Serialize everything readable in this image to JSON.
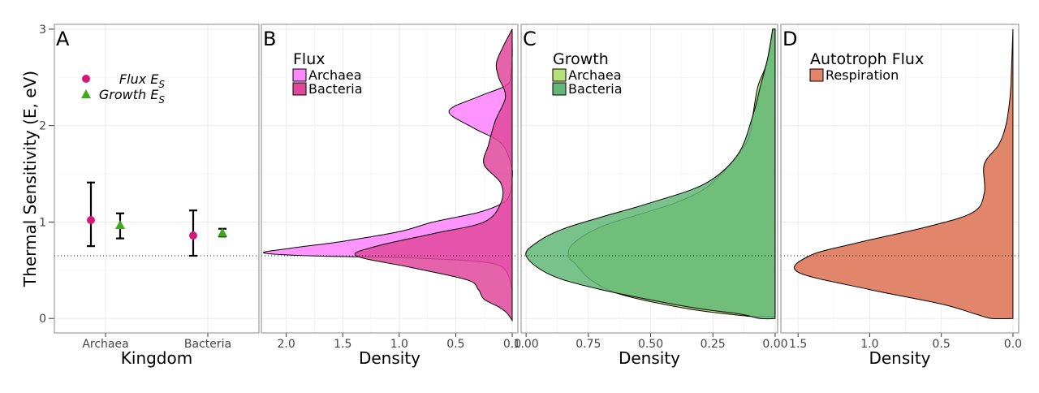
{
  "y_axis": {
    "title": "Thermal Sensitivity (E, eV)",
    "range": [
      -0.15,
      3.05
    ],
    "ticks": [
      0,
      1,
      2,
      3
    ],
    "tick_labels": [
      "0",
      "1",
      "2",
      "3"
    ]
  },
  "reference_line_y": 0.65,
  "colors": {
    "flux_point": "#d6167a",
    "growth_point": "#3fa91c",
    "flux_archaea": "#ff88ff",
    "flux_bacteria": "#e0489c",
    "growth_archaea": "#b7e078",
    "growth_bacteria": "#63b777",
    "growth_overlap": "#4db944",
    "flux_overlap": "#e040ae",
    "respiration": "#e2866b"
  },
  "chart_data": [
    {
      "panel": "A",
      "type": "scatter",
      "title": "",
      "xlabel": "Kingdom",
      "ylabel": "Thermal Sensitivity (E, eV)",
      "categories": [
        "Archaea",
        "Bacteria"
      ],
      "legend_placement": "top-left",
      "grid": true,
      "series": [
        {
          "name": "Flux E_S",
          "legend_main": "Flux E",
          "legend_sub": "S",
          "marker": "circle",
          "values": [
            1.02,
            0.86
          ],
          "error_low": [
            0.75,
            0.65
          ],
          "error_high": [
            1.41,
            1.12
          ]
        },
        {
          "name": "Growth E_S",
          "legend_main": "Growth E",
          "legend_sub": "S",
          "marker": "triangle",
          "values": [
            0.97,
            0.89
          ],
          "error_low": [
            0.83,
            0.85
          ],
          "error_high": [
            1.09,
            0.93
          ]
        }
      ]
    },
    {
      "panel": "B",
      "type": "area",
      "legend_title": "Flux",
      "xlabel": "Density",
      "xlim": [
        2.22,
        -0.05
      ],
      "x_ticks": [
        2.0,
        1.5,
        1.0,
        0.5,
        0.0
      ],
      "x_tick_labels": [
        "2.0",
        "1.5",
        "1.0",
        "0.5",
        "0.0"
      ],
      "legend_placement": "top-left",
      "grid": true,
      "series": [
        {
          "name": "Archaea",
          "points": [
            [
              0,
              0.28
            ],
            [
              0.02,
              0.4
            ],
            [
              0.06,
              0.5
            ],
            [
              0.14,
              0.56
            ],
            [
              0.4,
              0.6
            ],
            [
              1.0,
              0.63
            ],
            [
              1.8,
              0.65
            ],
            [
              2.2,
              0.68
            ],
            [
              1.95,
              0.73
            ],
            [
              1.5,
              0.8
            ],
            [
              1.0,
              0.9
            ],
            [
              0.7,
              1.0
            ],
            [
              0.3,
              1.1
            ],
            [
              0.08,
              1.2
            ],
            [
              0.02,
              1.3
            ],
            [
              0,
              1.45
            ],
            [
              0.01,
              1.6
            ],
            [
              0.1,
              1.82
            ],
            [
              0.35,
              1.98
            ],
            [
              0.56,
              2.15
            ],
            [
              0.3,
              2.3
            ],
            [
              0.05,
              2.42
            ],
            [
              0.01,
              2.55
            ],
            [
              0,
              2.7
            ],
            [
              0,
              2.9
            ]
          ]
        },
        {
          "name": "Bacteria",
          "points": [
            [
              0,
              -0.02
            ],
            [
              0.05,
              0.06
            ],
            [
              0.12,
              0.12
            ],
            [
              0.25,
              0.2
            ],
            [
              0.3,
              0.3
            ],
            [
              0.4,
              0.4
            ],
            [
              0.9,
              0.53
            ],
            [
              1.38,
              0.65
            ],
            [
              1.2,
              0.75
            ],
            [
              0.7,
              0.88
            ],
            [
              0.25,
              1.0
            ],
            [
              0.1,
              1.2
            ],
            [
              0.1,
              1.4
            ],
            [
              0.25,
              1.6
            ],
            [
              0.21,
              1.8
            ],
            [
              0.15,
              2.05
            ],
            [
              0.06,
              2.3
            ],
            [
              0.12,
              2.5
            ],
            [
              0.14,
              2.65
            ],
            [
              0.08,
              2.82
            ],
            [
              0,
              3.0
            ]
          ]
        }
      ]
    },
    {
      "panel": "C",
      "type": "area",
      "legend_title": "Growth",
      "xlabel": "Density",
      "xlim": [
        1.02,
        -0.01
      ],
      "x_ticks": [
        1.0,
        0.75,
        0.5,
        0.25,
        0.0
      ],
      "x_tick_labels": [
        "1.00",
        "0.75",
        "0.50",
        "0.25",
        "0.00"
      ],
      "legend_placement": "top-left",
      "grid": true,
      "series": [
        {
          "name": "Archaea",
          "points": [
            [
              0.1,
              0.02
            ],
            [
              0.35,
              0.1
            ],
            [
              0.62,
              0.25
            ],
            [
              0.74,
              0.4
            ],
            [
              0.8,
              0.56
            ],
            [
              0.83,
              0.65
            ],
            [
              0.81,
              0.78
            ],
            [
              0.7,
              0.95
            ],
            [
              0.52,
              1.1
            ],
            [
              0.4,
              1.2
            ],
            [
              0.28,
              1.35
            ],
            [
              0.18,
              1.6
            ],
            [
              0.11,
              1.85
            ],
            [
              0.09,
              2.1
            ],
            [
              0.07,
              2.4
            ],
            [
              0.04,
              2.6
            ],
            [
              0.02,
              2.8
            ],
            [
              0.01,
              3.0
            ]
          ]
        },
        {
          "name": "Bacteria",
          "points": [
            [
              0.0,
              0.0
            ],
            [
              0.06,
              0.0
            ],
            [
              0.15,
              0.05
            ],
            [
              0.35,
              0.12
            ],
            [
              0.7,
              0.3
            ],
            [
              0.9,
              0.45
            ],
            [
              1.0,
              0.65
            ],
            [
              0.95,
              0.8
            ],
            [
              0.85,
              0.93
            ],
            [
              0.7,
              1.05
            ],
            [
              0.5,
              1.2
            ],
            [
              0.28,
              1.4
            ],
            [
              0.15,
              1.7
            ],
            [
              0.09,
              2.1
            ],
            [
              0.06,
              2.4
            ],
            [
              0.03,
              2.7
            ],
            [
              0.01,
              3.0
            ]
          ]
        }
      ]
    },
    {
      "panel": "D",
      "type": "area",
      "legend_title": "Autotroph Flux",
      "xlabel": "Density",
      "xlim": [
        1.62,
        -0.04
      ],
      "x_ticks": [
        1.5,
        1.0,
        0.5,
        0.0
      ],
      "x_tick_labels": [
        "1.5",
        "1.0",
        "0.5",
        "0.0"
      ],
      "legend_placement": "top-left",
      "grid": true,
      "series": [
        {
          "name": "Respiration",
          "points": [
            [
              0,
              0.0
            ],
            [
              0.15,
              0.0
            ],
            [
              0.25,
              0.04
            ],
            [
              0.5,
              0.15
            ],
            [
              1.0,
              0.3
            ],
            [
              1.5,
              0.48
            ],
            [
              1.42,
              0.65
            ],
            [
              1.1,
              0.78
            ],
            [
              0.6,
              0.95
            ],
            [
              0.28,
              1.1
            ],
            [
              0.2,
              1.3
            ],
            [
              0.2,
              1.6
            ],
            [
              0.1,
              1.8
            ],
            [
              0.05,
              2.0
            ],
            [
              0.02,
              2.3
            ],
            [
              0.01,
              2.6
            ],
            [
              0.0,
              3.0
            ]
          ]
        }
      ]
    }
  ]
}
